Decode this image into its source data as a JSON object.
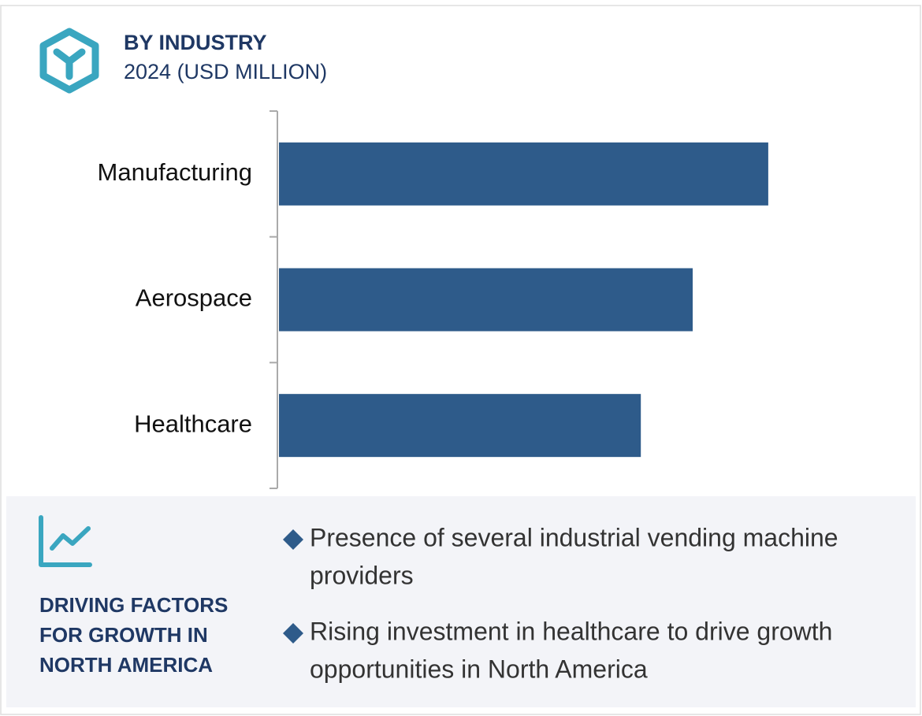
{
  "header": {
    "title": "BY INDUSTRY",
    "subtitle": "2024 (USD MILLION)"
  },
  "chart_data": {
    "type": "bar",
    "orientation": "horizontal",
    "categories": [
      "Manufacturing",
      "Aerospace",
      "Healthcare"
    ],
    "values": [
      88.7,
      75,
      65.6
    ],
    "color": "#2e5b8a",
    "xlim": [
      0,
      100
    ]
  },
  "factors": {
    "heading": [
      "DRIVING FACTORS",
      "FOR GROWTH IN",
      "NORTH AMERICA"
    ],
    "bullets": [
      {
        "lines": [
          "Presence of several industrial vending machine",
          "providers"
        ]
      },
      {
        "lines": [
          "Rising investment in healthcare to drive growth",
          "opportunities in North America"
        ]
      }
    ]
  }
}
